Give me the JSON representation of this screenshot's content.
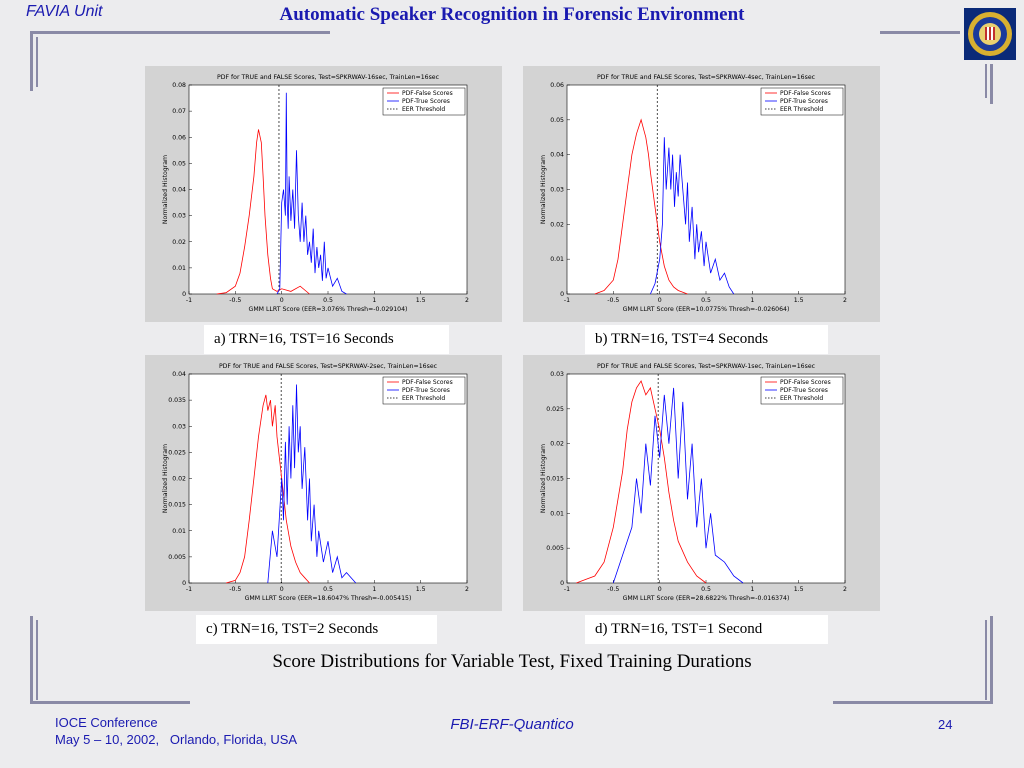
{
  "header": {
    "unit": "FAVIA Unit",
    "title": "Automatic Speaker Recognition in Forensic Environment",
    "logo_icon": "fbi-seal-icon"
  },
  "figures": [
    {
      "caption": "a) TRN=16, TST=16 Seconds"
    },
    {
      "caption": "b) TRN=16, TST=4 Seconds"
    },
    {
      "caption": "c) TRN=16, TST=2 Seconds"
    },
    {
      "caption": "d) TRN=16, TST=1 Second"
    }
  ],
  "summary": "Score Distributions for Variable Test, Fixed Training Durations",
  "footer": {
    "conference": "IOCE Conference",
    "dates": "May 5 – 10, 2002,   Orlando, Florida, USA",
    "center": "FBI-ERF-Quantico",
    "page": "24"
  },
  "colors": {
    "false_scores": "#ff0000",
    "true_scores": "#0000ff",
    "threshold": "#000000",
    "accent": "#1a1ab0"
  },
  "chart_data": [
    {
      "type": "line",
      "title": "PDF for TRUE and FALSE Scores, Test=SPKRWAV-16sec, TrainLen=16sec",
      "xlabel": "GMM LLRT Score (EER=3.076%  Thresh=-0.029104)",
      "ylabel": "Normalized Histogram",
      "xlim": [
        -1,
        2
      ],
      "ylim": [
        0,
        0.08
      ],
      "xticks": [
        "-1",
        "-0.5",
        "0",
        "0.5",
        "1",
        "1.5",
        "2"
      ],
      "yticks": [
        "0",
        "0.01",
        "0.02",
        "0.03",
        "0.04",
        "0.05",
        "0.06",
        "0.07",
        "0.08"
      ],
      "legend": [
        "PDF-False Scores",
        "PDF-True Scores",
        "EER Threshold"
      ],
      "legend_position": "top-right",
      "threshold": -0.029104,
      "series": [
        {
          "name": "PDF-False Scores",
          "color": "#ff0000",
          "x": [
            -0.7,
            -0.6,
            -0.5,
            -0.45,
            -0.4,
            -0.35,
            -0.3,
            -0.27,
            -0.25,
            -0.22,
            -0.2,
            -0.18,
            -0.15,
            -0.12,
            -0.1,
            -0.05,
            0,
            0.1,
            0.2,
            0.3
          ],
          "y": [
            0,
            0.0005,
            0.003,
            0.008,
            0.018,
            0.03,
            0.045,
            0.058,
            0.063,
            0.058,
            0.045,
            0.03,
            0.015,
            0.006,
            0.002,
            0.001,
            0.002,
            0.001,
            0.003,
            0
          ]
        },
        {
          "name": "PDF-True Scores",
          "color": "#0000ff",
          "x": [
            -0.05,
            -0.02,
            0,
            0.02,
            0.04,
            0.05,
            0.06,
            0.07,
            0.08,
            0.1,
            0.12,
            0.14,
            0.16,
            0.18,
            0.2,
            0.22,
            0.24,
            0.26,
            0.28,
            0.3,
            0.32,
            0.34,
            0.36,
            0.38,
            0.4,
            0.42,
            0.44,
            0.46,
            0.48,
            0.5,
            0.55,
            0.6,
            0.65,
            0.7
          ],
          "y": [
            0,
            0.002,
            0.035,
            0.04,
            0.03,
            0.077,
            0.035,
            0.025,
            0.045,
            0.028,
            0.04,
            0.025,
            0.055,
            0.03,
            0.02,
            0.035,
            0.02,
            0.03,
            0.015,
            0.02,
            0.012,
            0.025,
            0.008,
            0.018,
            0.01,
            0.015,
            0.005,
            0.02,
            0.006,
            0.01,
            0.003,
            0.006,
            0.001,
            0
          ]
        }
      ]
    },
    {
      "type": "line",
      "title": "PDF for TRUE and FALSE Scores, Test=SPKRWAV-4sec, TrainLen=16sec",
      "xlabel": "GMM LLRT Score (EER=10.0775%  Thresh=-0.026064)",
      "ylabel": "Normalized Histogram",
      "xlim": [
        -1,
        2
      ],
      "ylim": [
        0,
        0.06
      ],
      "xticks": [
        "-1",
        "-0.5",
        "0",
        "0.5",
        "1",
        "1.5",
        "2"
      ],
      "yticks": [
        "0",
        "0.01",
        "0.02",
        "0.03",
        "0.04",
        "0.05",
        "0.06"
      ],
      "legend": [
        "PDF-False Scores",
        "PDF-True Scores",
        "EER Threshold"
      ],
      "legend_position": "top-right",
      "threshold": -0.026064,
      "series": [
        {
          "name": "PDF-False Scores",
          "color": "#ff0000",
          "x": [
            -0.7,
            -0.6,
            -0.5,
            -0.45,
            -0.4,
            -0.35,
            -0.3,
            -0.25,
            -0.2,
            -0.17,
            -0.15,
            -0.12,
            -0.1,
            -0.05,
            0,
            0.05,
            0.1,
            0.15,
            0.2,
            0.3
          ],
          "y": [
            0,
            0.001,
            0.004,
            0.01,
            0.02,
            0.03,
            0.04,
            0.046,
            0.05,
            0.047,
            0.045,
            0.04,
            0.035,
            0.025,
            0.015,
            0.008,
            0.004,
            0.002,
            0.001,
            0
          ]
        },
        {
          "name": "PDF-True Scores",
          "color": "#0000ff",
          "x": [
            -0.1,
            -0.05,
            0,
            0.03,
            0.05,
            0.07,
            0.1,
            0.12,
            0.14,
            0.16,
            0.18,
            0.2,
            0.22,
            0.25,
            0.28,
            0.3,
            0.32,
            0.35,
            0.38,
            0.4,
            0.42,
            0.45,
            0.48,
            0.5,
            0.55,
            0.6,
            0.65,
            0.7,
            0.75,
            0.8
          ],
          "y": [
            0,
            0.003,
            0.01,
            0.02,
            0.045,
            0.03,
            0.042,
            0.03,
            0.04,
            0.025,
            0.035,
            0.028,
            0.04,
            0.03,
            0.02,
            0.032,
            0.015,
            0.025,
            0.01,
            0.02,
            0.012,
            0.018,
            0.008,
            0.015,
            0.006,
            0.01,
            0.004,
            0.006,
            0.002,
            0
          ]
        }
      ]
    },
    {
      "type": "line",
      "title": "PDF for TRUE and FALSE Scores, Test=SPKRWAV-2sec, TrainLen=16sec",
      "xlabel": "GMM LLRT Score (EER=18.6047%  Thresh=-0.005415)",
      "ylabel": "Normalized Histogram",
      "xlim": [
        -1,
        2
      ],
      "ylim": [
        0,
        0.04
      ],
      "xticks": [
        "-1",
        "-0.5",
        "0",
        "0.5",
        "1",
        "1.5",
        "2"
      ],
      "yticks": [
        "0",
        "0.005",
        "0.01",
        "0.015",
        "0.02",
        "0.025",
        "0.03",
        "0.035",
        "0.04"
      ],
      "legend": [
        "PDF-False Scores",
        "PDF-True Scores",
        "EER Threshold"
      ],
      "legend_position": "top-right",
      "threshold": -0.005415,
      "series": [
        {
          "name": "PDF-False Scores",
          "color": "#ff0000",
          "x": [
            -0.6,
            -0.5,
            -0.45,
            -0.4,
            -0.35,
            -0.3,
            -0.25,
            -0.2,
            -0.17,
            -0.15,
            -0.12,
            -0.1,
            -0.07,
            -0.05,
            0,
            0.05,
            0.1,
            0.15,
            0.2,
            0.25,
            0.3
          ],
          "y": [
            0,
            0.0005,
            0.002,
            0.005,
            0.012,
            0.02,
            0.028,
            0.034,
            0.036,
            0.033,
            0.035,
            0.03,
            0.034,
            0.028,
            0.02,
            0.012,
            0.007,
            0.004,
            0.002,
            0.001,
            0
          ]
        },
        {
          "name": "PDF-True Scores",
          "color": "#0000ff",
          "x": [
            -0.15,
            -0.1,
            -0.05,
            0,
            0.02,
            0.04,
            0.06,
            0.08,
            0.1,
            0.12,
            0.14,
            0.16,
            0.18,
            0.2,
            0.22,
            0.25,
            0.28,
            0.3,
            0.32,
            0.35,
            0.38,
            0.4,
            0.45,
            0.5,
            0.55,
            0.6,
            0.65,
            0.7,
            0.8
          ],
          "y": [
            0,
            0.01,
            0.005,
            0.02,
            0.012,
            0.027,
            0.015,
            0.03,
            0.02,
            0.034,
            0.022,
            0.038,
            0.025,
            0.03,
            0.018,
            0.026,
            0.012,
            0.02,
            0.008,
            0.015,
            0.005,
            0.01,
            0.004,
            0.008,
            0.002,
            0.005,
            0.001,
            0.002,
            0
          ]
        }
      ]
    },
    {
      "type": "line",
      "title": "PDF for TRUE and FALSE Scores, Test=SPKRWAV-1sec, TrainLen=16sec",
      "xlabel": "GMM LLRT Score (EER=28.6822%  Thresh=-0.016374)",
      "ylabel": "Normalized Histogram",
      "xlim": [
        -1,
        2
      ],
      "ylim": [
        0,
        0.03
      ],
      "xticks": [
        "-1",
        "-0.5",
        "0",
        "0.5",
        "1",
        "1.5",
        "2"
      ],
      "yticks": [
        "0",
        "0.005",
        "0.01",
        "0.015",
        "0.02",
        "0.025",
        "0.03"
      ],
      "legend": [
        "PDF-False Scores",
        "PDF-True Scores",
        "EER Threshold"
      ],
      "legend_position": "top-right",
      "threshold": -0.016374,
      "series": [
        {
          "name": "PDF-False Scores",
          "color": "#ff0000",
          "x": [
            -0.9,
            -0.8,
            -0.7,
            -0.6,
            -0.5,
            -0.4,
            -0.35,
            -0.3,
            -0.25,
            -0.2,
            -0.15,
            -0.1,
            -0.05,
            0,
            0.05,
            0.1,
            0.15,
            0.2,
            0.3,
            0.4,
            0.5
          ],
          "y": [
            0,
            0.0005,
            0.001,
            0.003,
            0.008,
            0.016,
            0.022,
            0.026,
            0.028,
            0.029,
            0.027,
            0.028,
            0.025,
            0.022,
            0.018,
            0.013,
            0.009,
            0.006,
            0.003,
            0.001,
            0
          ]
        },
        {
          "name": "PDF-True Scores",
          "color": "#0000ff",
          "x": [
            -0.5,
            -0.4,
            -0.3,
            -0.25,
            -0.2,
            -0.15,
            -0.1,
            -0.05,
            0,
            0.05,
            0.1,
            0.15,
            0.2,
            0.25,
            0.3,
            0.35,
            0.4,
            0.45,
            0.5,
            0.55,
            0.6,
            0.7,
            0.8,
            0.9
          ],
          "y": [
            0,
            0.004,
            0.008,
            0.015,
            0.01,
            0.02,
            0.014,
            0.024,
            0.018,
            0.027,
            0.02,
            0.028,
            0.015,
            0.026,
            0.012,
            0.02,
            0.008,
            0.015,
            0.005,
            0.01,
            0.004,
            0.003,
            0.001,
            0
          ]
        }
      ]
    }
  ]
}
